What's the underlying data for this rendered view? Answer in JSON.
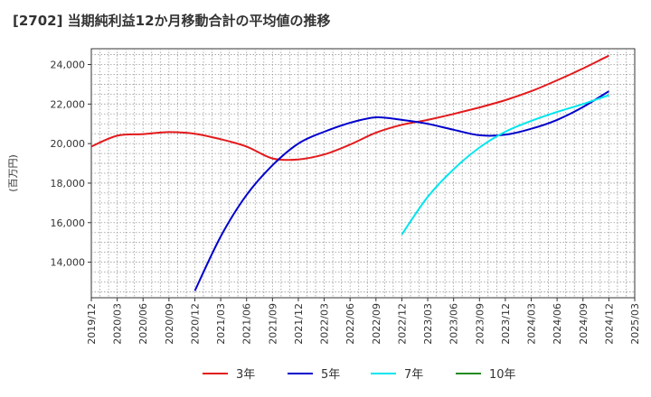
{
  "chart_data": {
    "type": "line",
    "title": "[2702]  当期純利益12か月移動合計の平均値の推移",
    "ylabel": "(百万円)",
    "xlabel": "",
    "ylim": [
      12200,
      24800
    ],
    "yticks": [
      14000,
      16000,
      18000,
      20000,
      22000,
      24000
    ],
    "ytick_labels": [
      "14,000",
      "16,000",
      "18,000",
      "20,000",
      "22,000",
      "24,000"
    ],
    "xticks": [
      "2019/12",
      "2020/03",
      "2020/06",
      "2020/09",
      "2020/12",
      "2021/03",
      "2021/06",
      "2021/09",
      "2021/12",
      "2022/03",
      "2022/06",
      "2022/09",
      "2022/12",
      "2023/03",
      "2023/06",
      "2023/09",
      "2023/12",
      "2024/03",
      "2024/06",
      "2024/09",
      "2024/12",
      "2025/03"
    ],
    "grid": true,
    "legend_position": "bottom",
    "series": [
      {
        "name": "3年",
        "color": "#e31a1c",
        "x": [
          "2019/12",
          "2020/03",
          "2020/06",
          "2020/09",
          "2020/12",
          "2021/03",
          "2021/06",
          "2021/09",
          "2021/12",
          "2022/03",
          "2022/06",
          "2022/09",
          "2022/12",
          "2023/03",
          "2023/06",
          "2023/09",
          "2023/12",
          "2024/03",
          "2024/06",
          "2024/09",
          "2024/12"
        ],
        "values": [
          19850,
          20400,
          20480,
          20580,
          20500,
          20220,
          19850,
          19250,
          19200,
          19450,
          19950,
          20550,
          20950,
          21200,
          21500,
          21830,
          22200,
          22650,
          23200,
          23800,
          24450
        ]
      },
      {
        "name": "5年",
        "color": "#0000cc",
        "x": [
          "2020/12",
          "2021/03",
          "2021/06",
          "2021/09",
          "2021/12",
          "2022/03",
          "2022/06",
          "2022/09",
          "2022/12",
          "2023/03",
          "2023/06",
          "2023/09",
          "2023/12",
          "2024/03",
          "2024/06",
          "2024/09",
          "2024/12"
        ],
        "values": [
          12550,
          15300,
          17400,
          18900,
          20000,
          20600,
          21050,
          21330,
          21200,
          21000,
          20700,
          20420,
          20450,
          20750,
          21200,
          21850,
          22650
        ]
      },
      {
        "name": "7年",
        "color": "#00e5ee",
        "x": [
          "2022/12",
          "2023/03",
          "2023/06",
          "2023/09",
          "2023/12",
          "2024/03",
          "2024/06",
          "2024/09",
          "2024/12"
        ],
        "values": [
          15400,
          17300,
          18700,
          19800,
          20600,
          21150,
          21600,
          22000,
          22450
        ]
      },
      {
        "name": "10年",
        "color": "#228b22",
        "x": [],
        "values": []
      }
    ]
  }
}
